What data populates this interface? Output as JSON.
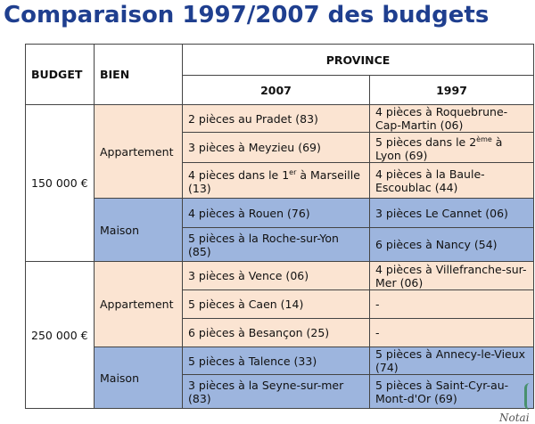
{
  "title": "Comparaison 1997/2007 des budgets",
  "headers": {
    "budget": "BUDGET",
    "bien": "BIEN",
    "province": "PROVINCE",
    "y2007": "2007",
    "y1997": "1997"
  },
  "groups": [
    {
      "budget": "150 000 €",
      "types": [
        {
          "type": "Appartement",
          "color": "#fbe4d2",
          "rows": [
            {
              "c2007": "2 pièces au Pradet (83)",
              "c1997": "4 pièces à Roquebrune-Cap-Martin (06)"
            },
            {
              "c2007": "3 pièces à Meyzieu (69)",
              "c1997": "5 pièces dans le 2ème à Lyon (69)"
            },
            {
              "c2007": "4 pièces dans le 1er à Marseille (13)",
              "c1997": "4 pièces à la Baule-Escoublac (44)"
            }
          ]
        },
        {
          "type": "Maison",
          "color": "#9db5de",
          "rows": [
            {
              "c2007": "4 pièces à Rouen (76)",
              "c1997": "3 pièces Le Cannet (06)"
            },
            {
              "c2007": "5 pièces à la Roche-sur-Yon (85)",
              "c1997": "6 pièces à Nancy (54)"
            }
          ]
        }
      ]
    },
    {
      "budget": "250 000 €",
      "types": [
        {
          "type": "Appartement",
          "color": "#fbe4d2",
          "rows": [
            {
              "c2007": "3 pièces à Vence (06)",
              "c1997": "4 pièces à Villefranche-sur-Mer (06)"
            },
            {
              "c2007": "5 pièces à Caen (14)",
              "c1997": "-"
            },
            {
              "c2007": "6 pièces à Besançon (25)",
              "c1997": "-"
            }
          ]
        },
        {
          "type": "Maison",
          "color": "#9db5de",
          "rows": [
            {
              "c2007": "5 pièces à Talence (33)",
              "c1997": "5 pièces à Annecy-le-Vieux (74)"
            },
            {
              "c2007": "3 pièces à la Seyne-sur-mer (83)",
              "c1997": "5 pièces à Saint-Cyr-au-Mont-d'Or (69)"
            }
          ]
        }
      ]
    }
  ],
  "footer_note": "Notai"
}
